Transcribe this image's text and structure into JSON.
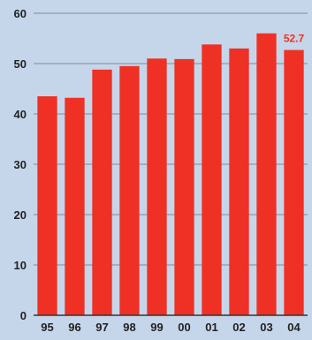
{
  "chart_data": {
    "type": "bar",
    "categories": [
      "95",
      "96",
      "97",
      "98",
      "99",
      "00",
      "01",
      "02",
      "03",
      "04"
    ],
    "values": [
      43.5,
      43.2,
      48.8,
      49.5,
      51.0,
      50.9,
      53.8,
      53.0,
      56.0,
      52.7
    ],
    "ylim": [
      0,
      60
    ],
    "yticks": [
      0,
      10,
      20,
      30,
      40,
      50,
      60
    ],
    "grid": true,
    "bar_color": "#ee3124",
    "axis_text_color": "#222222",
    "grid_color": "#7f8a96",
    "annotations": [
      {
        "category": "04",
        "text": "52.7",
        "color": "#ee3124"
      }
    ]
  }
}
